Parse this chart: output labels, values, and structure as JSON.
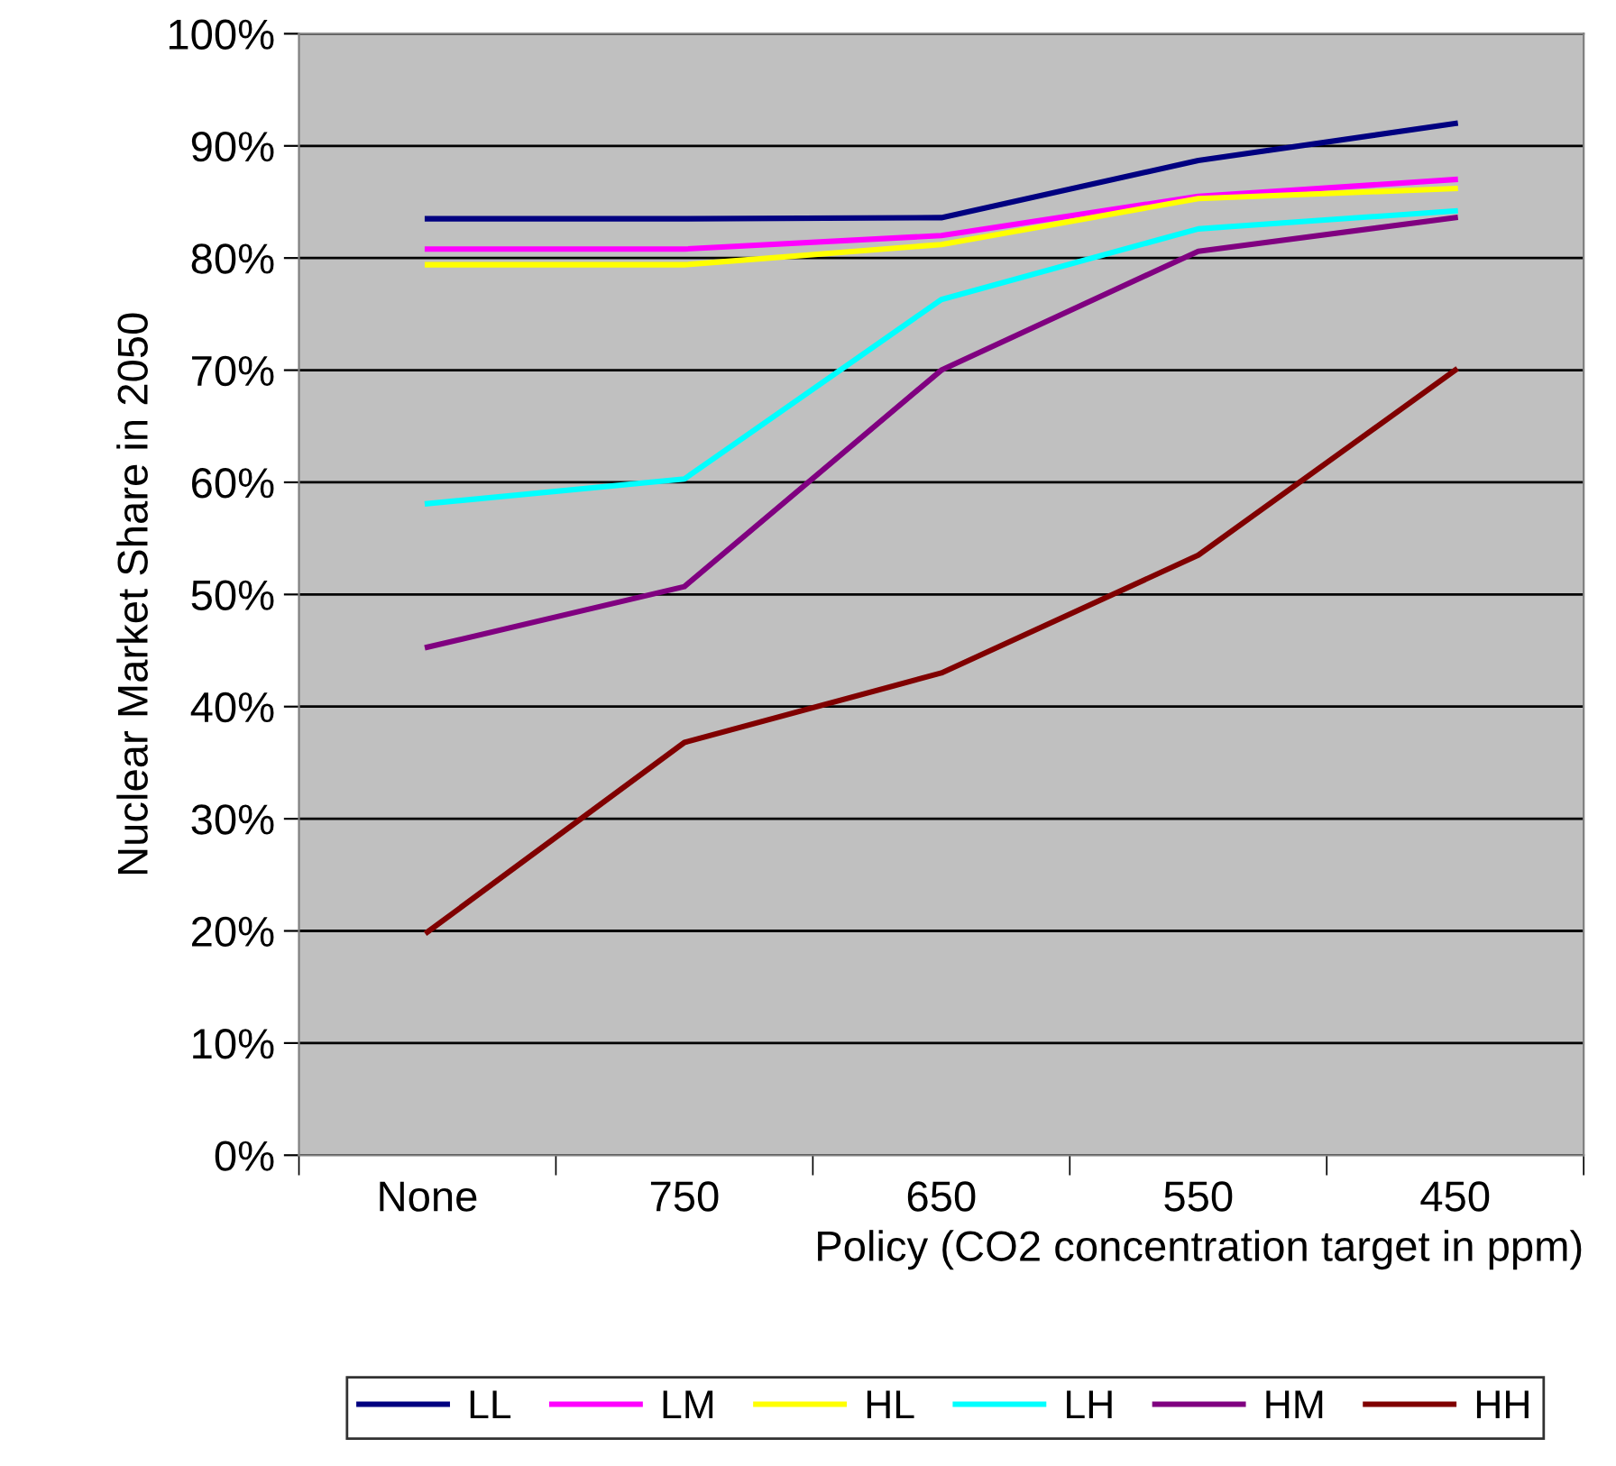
{
  "chart_data": {
    "type": "line",
    "xlabel": "Policy (CO2 concentration target in ppm)",
    "ylabel": "Nuclear Market Share in 2050",
    "categories": [
      "None",
      "750",
      "650",
      "550",
      "450"
    ],
    "series": [
      {
        "name": "LL",
        "color": "#000080",
        "values": [
          83.5,
          83.5,
          83.6,
          88.7,
          92
        ]
      },
      {
        "name": "LM",
        "color": "#ff00ff",
        "values": [
          80.8,
          80.8,
          82,
          85.5,
          87
        ]
      },
      {
        "name": "HL",
        "color": "#ffff00",
        "values": [
          79.4,
          79.4,
          81.2,
          85.3,
          86.2
        ]
      },
      {
        "name": "LH",
        "color": "#00ffff",
        "values": [
          58.1,
          60.3,
          76.3,
          82.6,
          84.2
        ]
      },
      {
        "name": "HM",
        "color": "#800080",
        "values": [
          45.3,
          50.7,
          70,
          80.6,
          83.6
        ]
      },
      {
        "name": "HH",
        "color": "#800000",
        "values": [
          19.9,
          36.8,
          43,
          53.5,
          70
        ]
      }
    ],
    "ylim": [
      0,
      100
    ],
    "yticks": [
      {
        "value": 0,
        "label": "0%"
      },
      {
        "value": 10,
        "label": "10%"
      },
      {
        "value": 20,
        "label": "20%"
      },
      {
        "value": 30,
        "label": "30%"
      },
      {
        "value": 40,
        "label": "40%"
      },
      {
        "value": 50,
        "label": "50%"
      },
      {
        "value": 60,
        "label": "60%"
      },
      {
        "value": 70,
        "label": "70%"
      },
      {
        "value": 80,
        "label": "80%"
      },
      {
        "value": 90,
        "label": "90%"
      },
      {
        "value": 100,
        "label": "100%"
      }
    ],
    "grid": "y",
    "legend": "bottom",
    "marker": "none",
    "line_style": "solid"
  }
}
